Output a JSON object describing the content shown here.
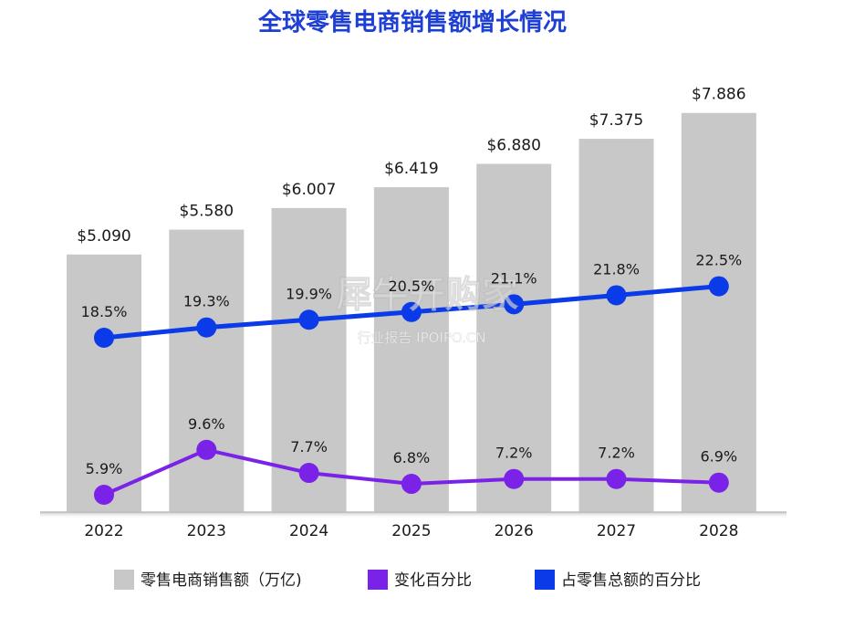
{
  "chart_data": {
    "type": "bar",
    "title": "全球零售电商销售额增长情况",
    "categories": [
      "2022",
      "2023",
      "2024",
      "2025",
      "2026",
      "2027",
      "2028"
    ],
    "ylim": [
      0,
      10
    ],
    "grid": false,
    "legend_position": "bottom",
    "series": [
      {
        "name": "零售电商销售额（万亿)",
        "kind": "bar",
        "color": "#C8C8C8",
        "values": [
          5.09,
          5.58,
          6.007,
          6.419,
          6.88,
          7.375,
          7.886
        ],
        "labels": [
          "$5.090",
          "$5.580",
          "$6.007",
          "$6.419",
          "$6.880",
          "$7.375",
          "$7.886"
        ]
      },
      {
        "name": "变化百分比",
        "kind": "line",
        "color": "#7B22E8",
        "values": [
          5.9,
          9.6,
          7.7,
          6.8,
          7.2,
          7.2,
          6.9
        ],
        "labels": [
          "5.9%",
          "9.6%",
          "7.7%",
          "6.8%",
          "7.2%",
          "7.2%",
          "6.9%"
        ]
      },
      {
        "name": "占零售总额的百分比",
        "kind": "line",
        "color": "#0B3BE8",
        "values": [
          18.5,
          19.3,
          19.9,
          20.5,
          21.1,
          21.8,
          22.5
        ],
        "labels": [
          "18.5%",
          "19.3%",
          "19.9%",
          "20.5%",
          "21.1%",
          "21.8%",
          "22.5%"
        ]
      }
    ]
  },
  "watermark": {
    "main": "犀牛开购家",
    "sub": "行业报告 IPOIPO.CN"
  }
}
